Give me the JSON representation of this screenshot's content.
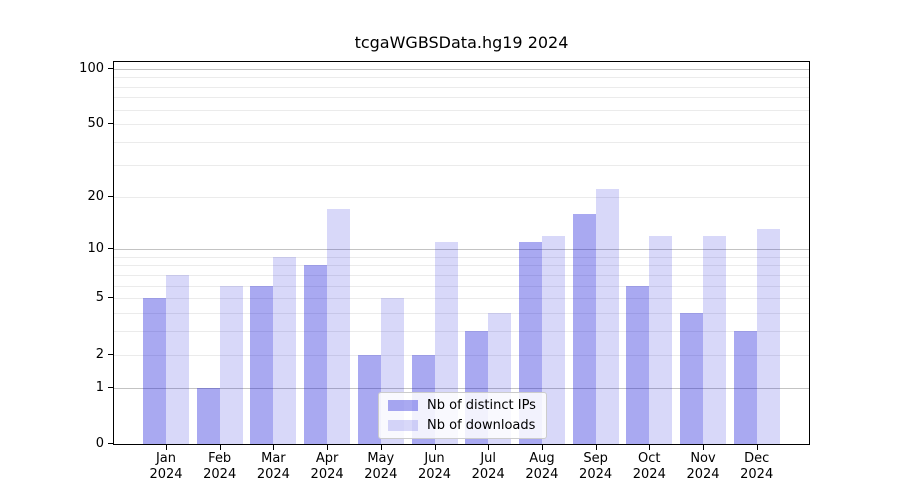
{
  "title": "tcgaWGBSData.hg19 2024",
  "chart_data": {
    "type": "bar",
    "title": "tcgaWGBSData.hg19 2024",
    "categories": [
      "Jan 2024",
      "Feb 2024",
      "Mar 2024",
      "Apr 2024",
      "May 2024",
      "Jun 2024",
      "Jul 2024",
      "Aug 2024",
      "Sep 2024",
      "Oct 2024",
      "Nov 2024",
      "Dec 2024"
    ],
    "series": [
      {
        "name": "Nb of distinct IPs",
        "color": "rgba(10,10,215,0.35)",
        "solid_color": "#a6a6ef",
        "values": [
          5,
          1,
          6,
          8,
          2,
          2,
          3,
          11,
          16,
          6,
          4,
          3
        ]
      },
      {
        "name": "Nb of downloads",
        "color": "rgba(10,10,215,0.16)",
        "solid_color": "#d8d8f7",
        "values": [
          7,
          6,
          9,
          17,
          5,
          11,
          4,
          12,
          22,
          12,
          12,
          13
        ]
      }
    ],
    "xlabel": "",
    "ylabel": "",
    "yscale": "log1p",
    "ylim": [
      0,
      112
    ],
    "yticks": [
      0,
      1,
      2,
      5,
      10,
      20,
      50,
      100
    ],
    "major_gridlines": [
      1,
      10,
      100
    ],
    "minor_gridlines": [
      2,
      3,
      4,
      5,
      6,
      7,
      8,
      9,
      20,
      30,
      40,
      50,
      60,
      70,
      80,
      90
    ],
    "grid": true,
    "legend_position": "lower center"
  },
  "colors": {
    "major_grid": "#c3c3c3",
    "minor_grid": "#ebebeb",
    "axis": "#000000",
    "background": "#ffffff",
    "legend_border": "#cccccc"
  }
}
